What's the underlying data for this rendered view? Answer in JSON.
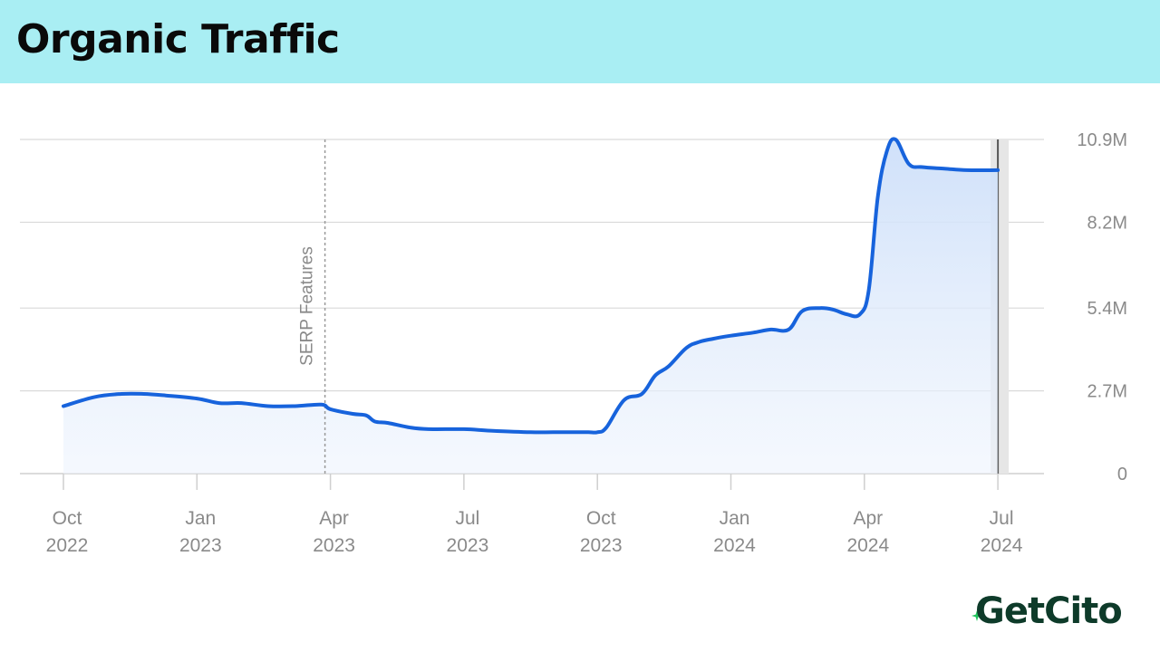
{
  "header": {
    "title": "Organic Traffic"
  },
  "brand": {
    "name": "GetCito"
  },
  "colors": {
    "header_bg": "#a9eef3",
    "line": "#1763dc",
    "fill": "#d3e3fa",
    "grid": "#dadada",
    "axis_text": "#8a8a8a",
    "brand_text": "#0e3b2a",
    "brand_accent": "#22c55e"
  },
  "chart_data": {
    "type": "area",
    "title": "Organic Traffic",
    "xlabel": "",
    "ylabel": "",
    "grid": true,
    "y_axis_position": "right",
    "ylim": [
      0,
      10.9
    ],
    "y_unit": "M",
    "y_ticks": [
      {
        "value": 0,
        "label": "0"
      },
      {
        "value": 2.7,
        "label": "2.7M"
      },
      {
        "value": 5.4,
        "label": "5.4M"
      },
      {
        "value": 8.2,
        "label": "8.2M"
      },
      {
        "value": 10.9,
        "label": "10.9M"
      }
    ],
    "x_ticks": [
      {
        "month": 0,
        "line1": "Oct",
        "line2": "2022"
      },
      {
        "month": 3,
        "line1": "Jan",
        "line2": "2023"
      },
      {
        "month": 6,
        "line1": "Apr",
        "line2": "2023"
      },
      {
        "month": 9,
        "line1": "Jul",
        "line2": "2023"
      },
      {
        "month": 12,
        "line1": "Oct",
        "line2": "2023"
      },
      {
        "month": 15,
        "line1": "Jan",
        "line2": "2024"
      },
      {
        "month": 18,
        "line1": "Apr",
        "line2": "2024"
      },
      {
        "month": 21,
        "line1": "Jul",
        "line2": "2024"
      }
    ],
    "annotation": {
      "month": 6,
      "label": "SERP Features"
    },
    "highlight_month": 21,
    "series": [
      {
        "name": "Organic Traffic",
        "x": [
          0,
          0.7,
          1.3,
          1.8,
          2.3,
          3.0,
          3.5,
          4.0,
          4.6,
          5.2,
          5.8,
          6.0,
          6.5,
          6.8,
          7.0,
          7.3,
          7.8,
          8.2,
          9.0,
          9.6,
          10.5,
          11.0,
          11.5,
          11.8,
          12.0,
          12.2,
          12.6,
          13.0,
          13.3,
          13.6,
          14.0,
          14.3,
          14.6,
          15.0,
          15.5,
          15.9,
          16.3,
          16.6,
          17.0,
          17.3,
          17.6,
          17.9,
          18.1,
          18.3,
          18.5,
          18.7,
          19.0,
          19.3,
          19.8,
          20.3,
          21.0
        ],
        "values": [
          2.2,
          2.5,
          2.6,
          2.6,
          2.55,
          2.45,
          2.3,
          2.3,
          2.2,
          2.2,
          2.25,
          2.1,
          1.95,
          1.9,
          1.7,
          1.65,
          1.5,
          1.45,
          1.45,
          1.4,
          1.35,
          1.35,
          1.35,
          1.35,
          1.35,
          1.5,
          2.4,
          2.6,
          3.2,
          3.5,
          4.1,
          4.3,
          4.4,
          4.5,
          4.6,
          4.7,
          4.7,
          5.3,
          5.4,
          5.35,
          5.2,
          5.2,
          6.0,
          9.0,
          10.5,
          10.9,
          10.1,
          10.0,
          9.95,
          9.9,
          9.9
        ]
      }
    ]
  }
}
